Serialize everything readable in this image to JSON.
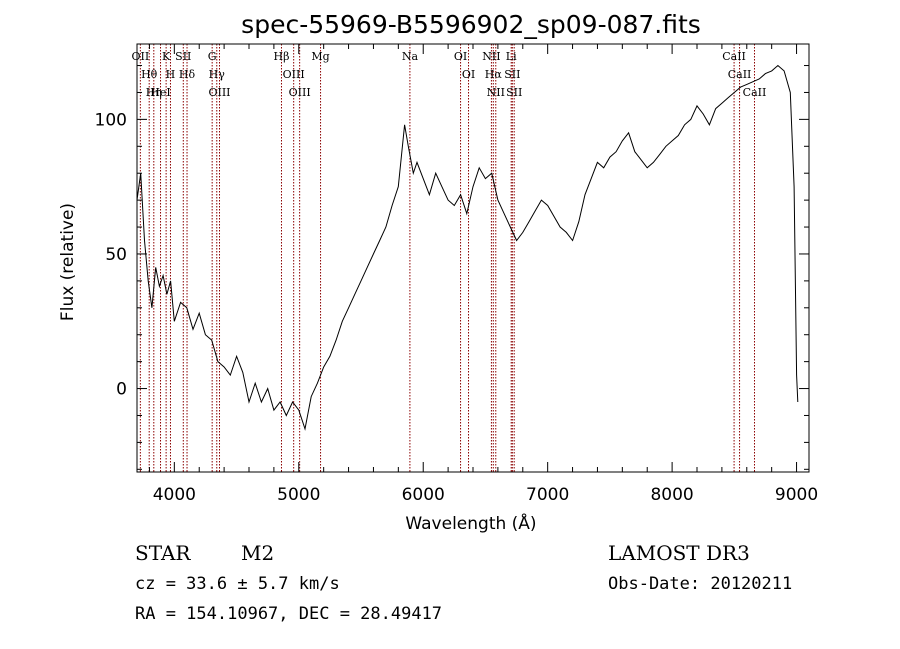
{
  "chart_data": {
    "type": "line",
    "title": "spec-55969-B5596902_sp09-087.fits",
    "xlabel": "Wavelength (Å)",
    "ylabel": "Flux (relative)",
    "xlim": [
      3700,
      9100
    ],
    "ylim": [
      -31,
      128
    ],
    "xticks": [
      4000,
      5000,
      6000,
      7000,
      8000,
      9000
    ],
    "yticks": [
      0,
      50,
      100
    ],
    "grid": false,
    "line_color": "#000000",
    "marker_color": "#8b0000",
    "series": [
      {
        "x": [
          3700,
          3730,
          3760,
          3790,
          3820,
          3850,
          3880,
          3910,
          3940,
          3970,
          4000,
          4050,
          4100,
          4150,
          4200,
          4250,
          4300,
          4350,
          4400,
          4450,
          4500,
          4550,
          4600,
          4650,
          4700,
          4750,
          4800,
          4850,
          4900,
          4950,
          5000,
          5050,
          5100,
          5150,
          5200,
          5250,
          5300,
          5350,
          5400,
          5450,
          5500,
          5550,
          5600,
          5650,
          5700,
          5750,
          5800,
          5850,
          5880,
          5900,
          5920,
          5950,
          6000,
          6050,
          6100,
          6150,
          6200,
          6250,
          6300,
          6350,
          6400,
          6450,
          6500,
          6550,
          6600,
          6650,
          6700,
          6750,
          6800,
          6850,
          6900,
          6950,
          7000,
          7050,
          7100,
          7150,
          7200,
          7250,
          7300,
          7350,
          7400,
          7450,
          7500,
          7550,
          7600,
          7650,
          7700,
          7750,
          7800,
          7850,
          7900,
          7950,
          8000,
          8050,
          8100,
          8150,
          8200,
          8250,
          8300,
          8350,
          8400,
          8450,
          8500,
          8550,
          8600,
          8650,
          8700,
          8750,
          8800,
          8850,
          8900,
          8950,
          8980,
          9000,
          9010
        ],
        "y": [
          70,
          80,
          55,
          40,
          30,
          45,
          38,
          42,
          35,
          40,
          25,
          32,
          30,
          22,
          28,
          20,
          18,
          10,
          8,
          5,
          12,
          6,
          -5,
          2,
          -5,
          0,
          -8,
          -5,
          -10,
          -5,
          -8,
          -15,
          -3,
          2,
          8,
          12,
          18,
          25,
          30,
          35,
          40,
          45,
          50,
          55,
          60,
          68,
          75,
          98,
          90,
          85,
          80,
          84,
          78,
          72,
          80,
          75,
          70,
          68,
          72,
          65,
          75,
          82,
          78,
          80,
          70,
          65,
          60,
          55,
          58,
          62,
          66,
          70,
          68,
          64,
          60,
          58,
          55,
          62,
          72,
          78,
          84,
          82,
          86,
          88,
          92,
          95,
          88,
          85,
          82,
          84,
          87,
          90,
          92,
          94,
          98,
          100,
          105,
          102,
          98,
          104,
          106,
          108,
          110,
          112,
          113,
          114,
          115,
          117,
          118,
          120,
          118,
          110,
          75,
          5,
          -5
        ]
      }
    ],
    "line_markers": [
      {
        "wavelength": 3727,
        "label": "OII"
      },
      {
        "wavelength": 3798,
        "label": "Hθ"
      },
      {
        "wavelength": 3835,
        "label": "Hη"
      },
      {
        "wavelength": 3889,
        "label": "HeI"
      },
      {
        "wavelength": 3934,
        "label": "K"
      },
      {
        "wavelength": 3969,
        "label": "H"
      },
      {
        "wavelength": 4072,
        "label": "SII"
      },
      {
        "wavelength": 4102,
        "label": "Hδ"
      },
      {
        "wavelength": 4304,
        "label": "G"
      },
      {
        "wavelength": 4341,
        "label": "Hγ"
      },
      {
        "wavelength": 4363,
        "label": "OIII"
      },
      {
        "wavelength": 4861,
        "label": "Hβ"
      },
      {
        "wavelength": 4959,
        "label": "OIII"
      },
      {
        "wavelength": 5007,
        "label": "OIII"
      },
      {
        "wavelength": 5175,
        "label": "Mg"
      },
      {
        "wavelength": 5893,
        "label": "Na"
      },
      {
        "wavelength": 6300,
        "label": "OI"
      },
      {
        "wavelength": 6364,
        "label": "OI"
      },
      {
        "wavelength": 6548,
        "label": "NII"
      },
      {
        "wavelength": 6563,
        "label": "Hα"
      },
      {
        "wavelength": 6583,
        "label": "NII"
      },
      {
        "wavelength": 6707,
        "label": "Li"
      },
      {
        "wavelength": 6716,
        "label": "SII"
      },
      {
        "wavelength": 6731,
        "label": "SII"
      },
      {
        "wavelength": 8498,
        "label": "CaII"
      },
      {
        "wavelength": 8542,
        "label": "CaII"
      },
      {
        "wavelength": 8662,
        "label": "CaII"
      }
    ]
  },
  "info": {
    "object_class": "STAR",
    "subclass": "M2",
    "redshift": "cz = 33.6 ± 5.7 km/s",
    "coords": "RA = 154.10967, DEC =  28.49417",
    "survey": "LAMOST DR3",
    "obs_date": "Obs-Date: 20120211"
  }
}
